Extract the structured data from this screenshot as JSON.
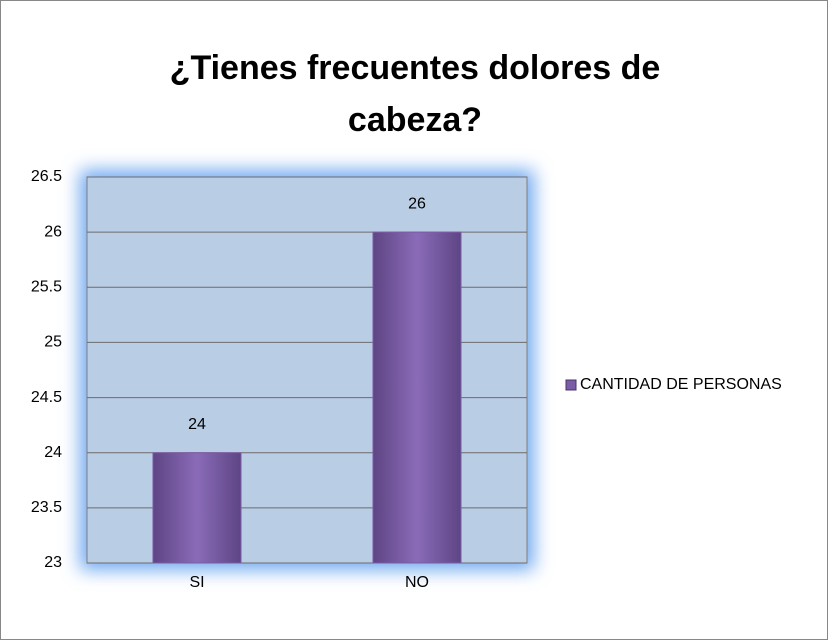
{
  "chart_data": {
    "type": "bar",
    "title": "¿Tienes frecuentes dolores de cabeza?",
    "categories": [
      "SI",
      "NO"
    ],
    "series": [
      {
        "name": "CANTIDAD DE PERSONAS",
        "color": "#7b5ca6",
        "values": [
          24,
          26
        ]
      }
    ],
    "ylim": [
      23,
      26.5
    ],
    "yticks": [
      23,
      23.5,
      24,
      24.5,
      25,
      25.5,
      26,
      26.5
    ],
    "grid": true,
    "legend": "right"
  }
}
